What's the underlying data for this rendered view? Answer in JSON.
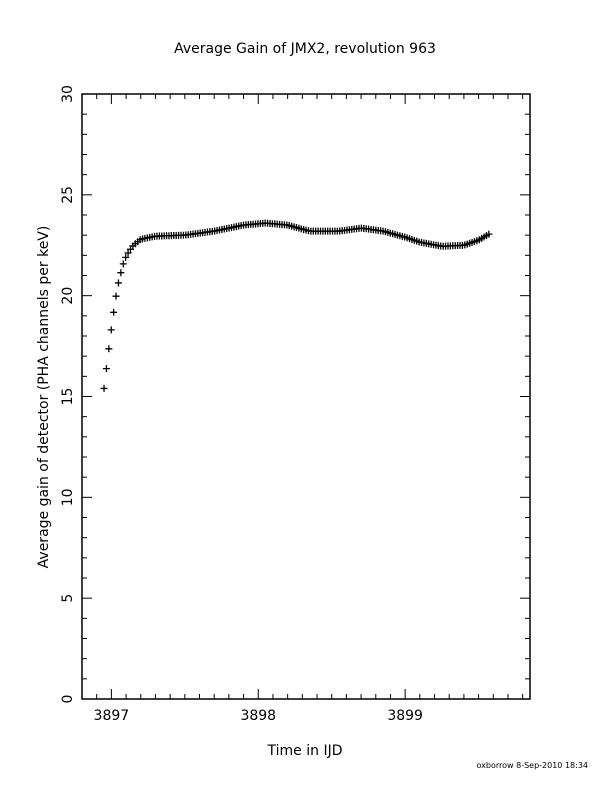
{
  "chart_data": {
    "type": "scatter",
    "title": "Average Gain of JMX2, revolution 963",
    "xlabel": "Time in IJD",
    "ylabel": "Average gain of detector (PHA channels per keV)",
    "xlim": [
      3896.8,
      3899.85
    ],
    "ylim": [
      0,
      30
    ],
    "x_ticks": [
      3897,
      3898,
      3899
    ],
    "y_ticks": [
      0,
      5,
      10,
      15,
      20,
      25,
      30
    ],
    "grid": false,
    "marker": "plus",
    "series": [
      {
        "x": [
          3896.95,
          3896.97,
          3896.99,
          3897.01,
          3897.03,
          3897.05,
          3897.07,
          3897.09,
          3897.12,
          3897.15,
          3897.2,
          3897.3,
          3897.5,
          3897.7,
          3897.9,
          3898.05,
          3898.2,
          3898.35,
          3898.55,
          3898.7,
          3898.85,
          3899.0,
          3899.1,
          3899.25,
          3899.4,
          3899.5,
          3899.57
        ],
        "y": [
          15.4,
          16.6,
          17.8,
          18.9,
          19.9,
          20.7,
          21.3,
          21.8,
          22.2,
          22.5,
          22.8,
          22.95,
          23.0,
          23.2,
          23.5,
          23.6,
          23.5,
          23.2,
          23.2,
          23.35,
          23.2,
          22.9,
          22.65,
          22.45,
          22.5,
          22.75,
          23.05
        ]
      }
    ]
  },
  "footer_text": "oxborrow  8-Sep-2010 18:34"
}
